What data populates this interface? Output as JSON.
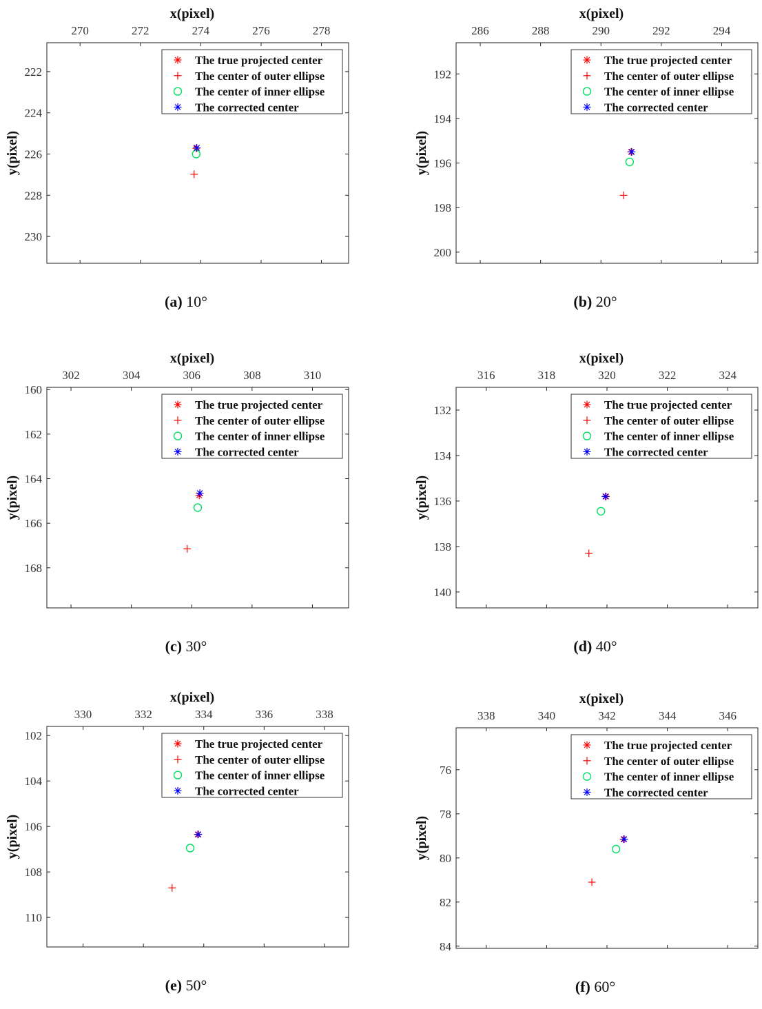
{
  "chart_data": [
    {
      "panel_id": "a",
      "caption_label": "(a)",
      "caption_angle": "10°",
      "type": "scatter",
      "xlabel": "x(pixel)",
      "ylabel": "y(pixel)",
      "xlim": [
        268.9,
        278.9
      ],
      "ylim": [
        220.6,
        231.3
      ],
      "xticks": [
        "270",
        "272",
        "274",
        "276",
        "278"
      ],
      "yticks": [
        "222",
        "224",
        "226",
        "228",
        "230"
      ],
      "series": [
        {
          "name": "The true projected center",
          "marker": "star",
          "color": "#ff0000",
          "points": [
            [
              273.85,
              225.72
            ]
          ]
        },
        {
          "name": "The center of outer ellipse",
          "marker": "plus",
          "color": "#ff0000",
          "points": [
            [
              273.78,
              226.98
            ]
          ]
        },
        {
          "name": "The center of inner ellipse",
          "marker": "circle",
          "color": "#00e060",
          "points": [
            [
              273.85,
              226.0
            ]
          ]
        },
        {
          "name": "The corrected center",
          "marker": "star",
          "color": "#0000ff",
          "points": [
            [
              273.87,
              225.7
            ]
          ]
        }
      ]
    },
    {
      "panel_id": "b",
      "caption_label": "(b)",
      "caption_angle": "20°",
      "type": "scatter",
      "xlabel": "x(pixel)",
      "ylabel": "y(pixel)",
      "xlim": [
        285.2,
        295.2
      ],
      "ylim": [
        190.6,
        200.5
      ],
      "xticks": [
        "286",
        "288",
        "290",
        "292",
        "294"
      ],
      "yticks": [
        "192",
        "194",
        "196",
        "198",
        "200"
      ],
      "series": [
        {
          "name": "The true projected center",
          "marker": "star",
          "color": "#ff0000",
          "points": [
            [
              291.0,
              195.5
            ]
          ]
        },
        {
          "name": "The center of outer ellipse",
          "marker": "plus",
          "color": "#ff0000",
          "points": [
            [
              290.75,
              197.45
            ]
          ]
        },
        {
          "name": "The center of inner ellipse",
          "marker": "circle",
          "color": "#00e060",
          "points": [
            [
              290.95,
              195.95
            ]
          ]
        },
        {
          "name": "The corrected center",
          "marker": "star",
          "color": "#0000ff",
          "points": [
            [
              291.02,
              195.5
            ]
          ]
        }
      ]
    },
    {
      "panel_id": "c",
      "caption_label": "(c)",
      "caption_angle": "30°",
      "type": "scatter",
      "xlabel": "x(pixel)",
      "ylabel": "y(pixel)",
      "xlim": [
        301.2,
        311.2
      ],
      "ylim": [
        159.9,
        169.8
      ],
      "xticks": [
        "302",
        "304",
        "306",
        "308",
        "310"
      ],
      "yticks": [
        "160",
        "162",
        "164",
        "166",
        "168"
      ],
      "series": [
        {
          "name": "The true projected center",
          "marker": "star",
          "color": "#ff0000",
          "points": [
            [
              306.25,
              164.75
            ]
          ]
        },
        {
          "name": "The center of outer ellipse",
          "marker": "plus",
          "color": "#ff0000",
          "points": [
            [
              305.85,
              167.15
            ]
          ]
        },
        {
          "name": "The center of inner ellipse",
          "marker": "circle",
          "color": "#00e060",
          "points": [
            [
              306.2,
              165.3
            ]
          ]
        },
        {
          "name": "The corrected center",
          "marker": "star",
          "color": "#0000ff",
          "points": [
            [
              306.27,
              164.65
            ]
          ]
        }
      ]
    },
    {
      "panel_id": "d",
      "caption_label": "(d)",
      "caption_angle": "40°",
      "type": "scatter",
      "xlabel": "x(pixel)",
      "ylabel": "y(pixel)",
      "xlim": [
        315.0,
        325.0
      ],
      "ylim": [
        131.0,
        140.7
      ],
      "xticks": [
        "316",
        "318",
        "320",
        "322",
        "324"
      ],
      "yticks": [
        "132",
        "134",
        "136",
        "138",
        "140"
      ],
      "series": [
        {
          "name": "The true projected center",
          "marker": "star",
          "color": "#ff0000",
          "points": [
            [
              319.97,
              135.8
            ]
          ]
        },
        {
          "name": "The center of outer ellipse",
          "marker": "plus",
          "color": "#ff0000",
          "points": [
            [
              319.4,
              138.3
            ]
          ]
        },
        {
          "name": "The center of inner ellipse",
          "marker": "circle",
          "color": "#00e060",
          "points": [
            [
              319.8,
              136.45
            ]
          ]
        },
        {
          "name": "The corrected center",
          "marker": "star",
          "color": "#0000ff",
          "points": [
            [
              319.95,
              135.8
            ]
          ]
        }
      ]
    },
    {
      "panel_id": "e",
      "caption_label": "(e)",
      "caption_angle": "50°",
      "type": "scatter",
      "xlabel": "x(pixel)",
      "ylabel": "y(pixel)",
      "xlim": [
        328.8,
        338.8
      ],
      "ylim": [
        101.6,
        111.3
      ],
      "xticks": [
        "330",
        "332",
        "334",
        "336",
        "338"
      ],
      "yticks": [
        "102",
        "104",
        "106",
        "108",
        "110"
      ],
      "series": [
        {
          "name": "The true projected center",
          "marker": "star",
          "color": "#ff0000",
          "points": [
            [
              333.8,
              106.35
            ]
          ]
        },
        {
          "name": "The center of outer ellipse",
          "marker": "plus",
          "color": "#ff0000",
          "points": [
            [
              332.95,
              108.7
            ]
          ]
        },
        {
          "name": "The center of inner ellipse",
          "marker": "circle",
          "color": "#00e060",
          "points": [
            [
              333.55,
              106.95
            ]
          ]
        },
        {
          "name": "The corrected center",
          "marker": "star",
          "color": "#0000ff",
          "points": [
            [
              333.82,
              106.35
            ]
          ]
        }
      ]
    },
    {
      "panel_id": "f",
      "caption_label": "(f)",
      "caption_angle": "60°",
      "type": "scatter",
      "xlabel": "x(pixel)",
      "ylabel": "y(pixel)",
      "xlim": [
        337.0,
        347.0
      ],
      "ylim": [
        74.1,
        84.1
      ],
      "xticks": [
        "338",
        "340",
        "342",
        "344",
        "346"
      ],
      "yticks": [
        "76",
        "78",
        "80",
        "82",
        "84"
      ],
      "series": [
        {
          "name": "The true projected center",
          "marker": "star",
          "color": "#ff0000",
          "points": [
            [
              342.55,
              79.15
            ]
          ]
        },
        {
          "name": "The center of outer ellipse",
          "marker": "plus",
          "color": "#ff0000",
          "points": [
            [
              341.5,
              81.1
            ]
          ]
        },
        {
          "name": "The center of inner ellipse",
          "marker": "circle",
          "color": "#00e060",
          "points": [
            [
              342.3,
              79.6
            ]
          ]
        },
        {
          "name": "The corrected center",
          "marker": "star",
          "color": "#0000ff",
          "points": [
            [
              342.57,
              79.15
            ]
          ]
        }
      ]
    }
  ]
}
